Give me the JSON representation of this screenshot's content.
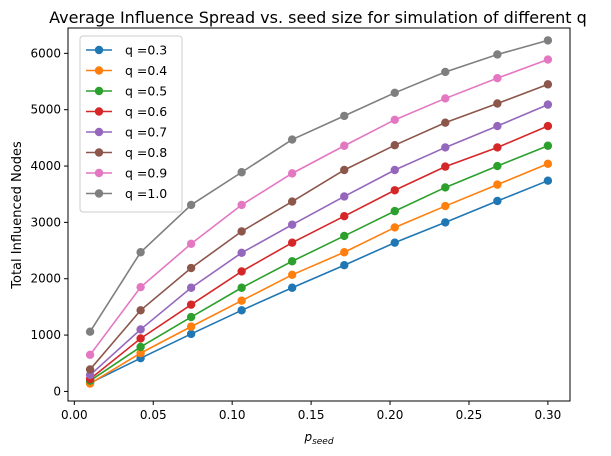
{
  "chart_data": {
    "type": "line",
    "title": "Average Influence Spread vs. seed size for simulation of different q",
    "xlabel_main": "p",
    "xlabel_sub": "seed",
    "ylabel": "Total Influenced Nodes",
    "xlim": [
      -0.004,
      0.314
    ],
    "ylim": [
      -170,
      6450
    ],
    "x": [
      0.01,
      0.042,
      0.074,
      0.106,
      0.138,
      0.171,
      0.203,
      0.235,
      0.268,
      0.3
    ],
    "xticks": [
      {
        "value": 0.0,
        "label": "0.00"
      },
      {
        "value": 0.05,
        "label": "0.05"
      },
      {
        "value": 0.1,
        "label": "0.10"
      },
      {
        "value": 0.15,
        "label": "0.15"
      },
      {
        "value": 0.2,
        "label": "0.20"
      },
      {
        "value": 0.25,
        "label": "0.25"
      },
      {
        "value": 0.3,
        "label": "0.30"
      }
    ],
    "yticks": [
      {
        "value": 0,
        "label": "0"
      },
      {
        "value": 1000,
        "label": "1000"
      },
      {
        "value": 2000,
        "label": "2000"
      },
      {
        "value": 3000,
        "label": "3000"
      },
      {
        "value": 4000,
        "label": "4000"
      },
      {
        "value": 5000,
        "label": "5000"
      },
      {
        "value": 6000,
        "label": "6000"
      }
    ],
    "grid": false,
    "legend_position": "upper-left",
    "series": [
      {
        "name": "q =0.3",
        "color": "#1f77b4",
        "values": [
          150,
          590,
          1020,
          1440,
          1840,
          2240,
          2640,
          3000,
          3380,
          3740
        ]
      },
      {
        "name": "q =0.4",
        "color": "#ff7f0e",
        "values": [
          140,
          680,
          1150,
          1610,
          2070,
          2470,
          2910,
          3290,
          3670,
          4040
        ]
      },
      {
        "name": "q =0.5",
        "color": "#2ca02c",
        "values": [
          190,
          790,
          1320,
          1840,
          2310,
          2760,
          3200,
          3620,
          4000,
          4360
        ]
      },
      {
        "name": "q =0.6",
        "color": "#d62728",
        "values": [
          220,
          940,
          1540,
          2130,
          2640,
          3110,
          3570,
          3990,
          4330,
          4710
        ]
      },
      {
        "name": "q =0.7",
        "color": "#9467bd",
        "values": [
          290,
          1100,
          1840,
          2460,
          2960,
          3460,
          3930,
          4330,
          4710,
          5090
        ]
      },
      {
        "name": "q =0.8",
        "color": "#8c564b",
        "values": [
          390,
          1440,
          2190,
          2840,
          3370,
          3930,
          4370,
          4770,
          5110,
          5450
        ]
      },
      {
        "name": "q =0.9",
        "color": "#e377c2",
        "values": [
          650,
          1850,
          2620,
          3310,
          3870,
          4360,
          4820,
          5200,
          5560,
          5890
        ]
      },
      {
        "name": "q =1.0",
        "color": "#7f7f7f",
        "values": [
          1060,
          2470,
          3310,
          3890,
          4470,
          4890,
          5300,
          5670,
          5980,
          6230
        ]
      }
    ]
  }
}
